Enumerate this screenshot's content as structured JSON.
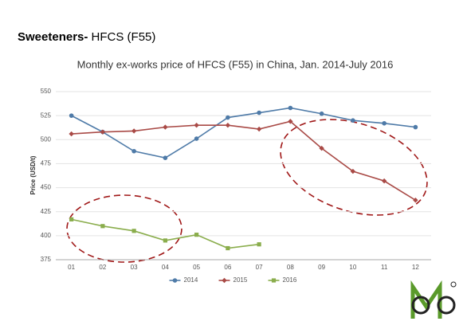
{
  "heading": {
    "bold": "Sweeteners-",
    "text": "HFCS (F55)"
  },
  "chart_data": {
    "type": "line",
    "title": "Monthly ex-works price of HFCS (F55)  in China, Jan. 2014-July  2016",
    "y_label": "Price (USD/t)",
    "categories": [
      "01",
      "02",
      "03",
      "04",
      "05",
      "06",
      "07",
      "08",
      "09",
      "10",
      "11",
      "12"
    ],
    "series": [
      {
        "name": "2014",
        "color": "#4f7ba8",
        "marker": "circle",
        "values": [
          525,
          508,
          488,
          481,
          501,
          523,
          528,
          533,
          527,
          520,
          517,
          513
        ]
      },
      {
        "name": "2015",
        "color": "#a94a46",
        "marker": "diamond",
        "values": [
          506,
          508,
          509,
          513,
          515,
          515,
          511,
          519,
          491,
          467,
          457,
          437
        ]
      },
      {
        "name": "2016",
        "color": "#8aad4c",
        "marker": "square",
        "values": [
          417,
          410,
          405,
          395,
          401,
          387,
          391,
          null,
          null,
          null,
          null,
          null
        ]
      }
    ],
    "ylim": [
      375,
      550
    ],
    "yticks": [
      375,
      400,
      425,
      450,
      475,
      500,
      525,
      550
    ],
    "grid": true,
    "legend": "bottom"
  }
}
